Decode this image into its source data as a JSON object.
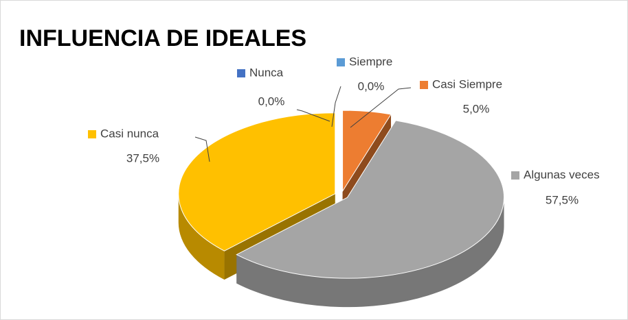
{
  "chart_data": {
    "type": "pie",
    "title": "INFLUENCIA DE IDEALES",
    "categories": [
      "Siempre",
      "Casi Siempre",
      "Algunas veces",
      "Casi nunca",
      "Nunca"
    ],
    "values": [
      0,
      5,
      57.5,
      37.5,
      0
    ],
    "value_labels": [
      "0,0%",
      "5,0%",
      "57,5%",
      "37,5%",
      "0,0%"
    ],
    "colors": [
      "#5b9bd5",
      "#ed7d31",
      "#a5a5a5",
      "#ffc000",
      "#4472c4"
    ]
  }
}
